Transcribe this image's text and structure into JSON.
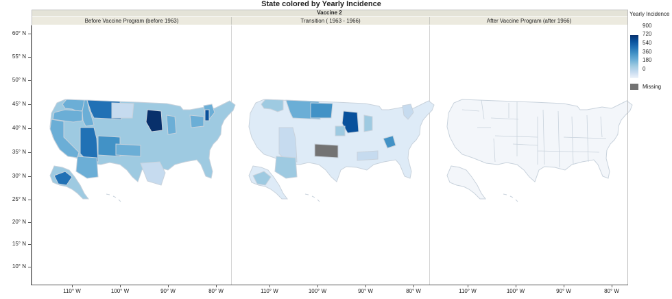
{
  "title": "State colored by Yearly Incidence",
  "group_header": "Vaccine 2",
  "panels": [
    {
      "label": "Before Vaccine Program (before 1963)"
    },
    {
      "label": "Transition ( 1963 - 1966)"
    },
    {
      "label": "After Vaccine Program (after 1966)"
    }
  ],
  "y_axis": {
    "ticks": [
      "60° N",
      "55° N",
      "50° N",
      "45° N",
      "40° N",
      "35° N",
      "30° N",
      "25° N",
      "20° N",
      "15° N",
      "10° N"
    ]
  },
  "x_axis": {
    "ticks": [
      "110° W",
      "100° W",
      "90° W",
      "80° W"
    ]
  },
  "legend": {
    "title": "Yearly Incidence",
    "labels": [
      "900",
      "720",
      "540",
      "360",
      "180",
      "0"
    ],
    "missing_label": "Missing",
    "missing_color": "#737373",
    "gradient": [
      "#08306b",
      "#08519c",
      "#2171b5",
      "#4292c6",
      "#6baed6",
      "#9ecae1",
      "#c6dbef",
      "#eef3fa"
    ]
  },
  "colors": {
    "header_bg": "#e4e3d8",
    "state_border": "#c8d2dc",
    "after_fill": "#f3f6fa"
  }
}
